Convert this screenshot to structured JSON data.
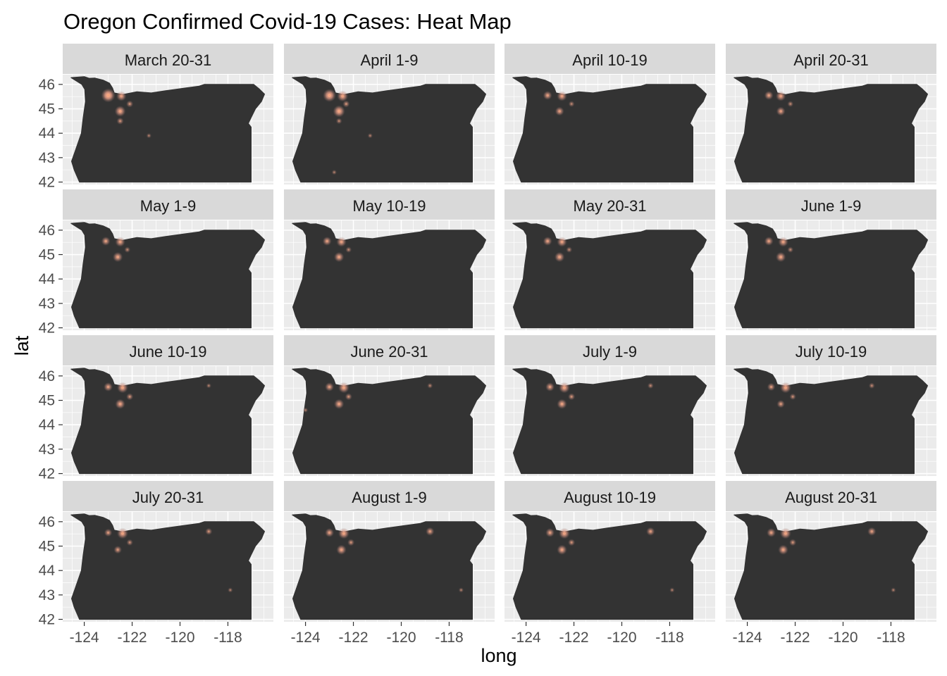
{
  "chart_data": {
    "type": "heatmap",
    "title": "Oregon Confirmed Covid-19 Cases: Heat Map",
    "xlabel": "long",
    "ylabel": "lat",
    "xlim": [
      -124.9,
      -116.1
    ],
    "ylim": [
      41.9,
      46.4
    ],
    "x_ticks": [
      -124,
      -122,
      -120,
      -118
    ],
    "y_ticks": [
      42,
      43,
      44,
      45,
      46
    ],
    "grid": true,
    "facet_layout": {
      "rows": 4,
      "cols": 4
    },
    "colors": {
      "panel_background": "#ebebeb",
      "grid": "#ffffff",
      "strip_background": "#d9d9d9",
      "map_fill": "#333333",
      "hotspot_core": "#f4a582",
      "hotspot_glow": "#c0857a"
    },
    "oregon_outline": [
      [
        -124.55,
        46.28
      ],
      [
        -124.0,
        46.32
      ],
      [
        -123.8,
        46.25
      ],
      [
        -123.55,
        46.26
      ],
      [
        -123.2,
        46.17
      ],
      [
        -122.95,
        46.05
      ],
      [
        -122.82,
        45.85
      ],
      [
        -122.75,
        45.65
      ],
      [
        -122.4,
        45.58
      ],
      [
        -121.8,
        45.7
      ],
      [
        -121.2,
        45.65
      ],
      [
        -120.6,
        45.74
      ],
      [
        -119.8,
        45.85
      ],
      [
        -119.2,
        45.93
      ],
      [
        -118.99,
        46.0
      ],
      [
        -116.92,
        46.0
      ],
      [
        -116.7,
        45.82
      ],
      [
        -116.47,
        45.6
      ],
      [
        -116.6,
        45.3
      ],
      [
        -116.85,
        45.0
      ],
      [
        -117.0,
        44.7
      ],
      [
        -117.15,
        44.4
      ],
      [
        -117.03,
        44.25
      ],
      [
        -117.03,
        42.0
      ],
      [
        -124.2,
        42.0
      ],
      [
        -124.42,
        42.5
      ],
      [
        -124.53,
        42.85
      ],
      [
        -124.35,
        43.35
      ],
      [
        -124.12,
        44.0
      ],
      [
        -124.05,
        44.6
      ],
      [
        -123.95,
        45.3
      ],
      [
        -123.98,
        45.8
      ],
      [
        -124.1,
        46.0
      ]
    ],
    "panels": [
      {
        "label": "March 20-31",
        "points": [
          {
            "long": -123.0,
            "lat": 45.55,
            "intensity": 1.0
          },
          {
            "long": -122.45,
            "lat": 45.52,
            "intensity": 0.6
          },
          {
            "long": -122.1,
            "lat": 45.2,
            "intensity": 0.3
          },
          {
            "long": -122.5,
            "lat": 44.9,
            "intensity": 0.7
          },
          {
            "long": -122.5,
            "lat": 44.5,
            "intensity": 0.3
          },
          {
            "long": -121.3,
            "lat": 43.9,
            "intensity": 0.1
          }
        ]
      },
      {
        "label": "April 1-9",
        "points": [
          {
            "long": -123.0,
            "lat": 45.55,
            "intensity": 0.9
          },
          {
            "long": -122.45,
            "lat": 45.52,
            "intensity": 0.7
          },
          {
            "long": -122.3,
            "lat": 45.2,
            "intensity": 0.3
          },
          {
            "long": -122.6,
            "lat": 44.9,
            "intensity": 0.8
          },
          {
            "long": -122.6,
            "lat": 44.5,
            "intensity": 0.2
          },
          {
            "long": -121.3,
            "lat": 43.9,
            "intensity": 0.1
          },
          {
            "long": -122.8,
            "lat": 42.4,
            "intensity": 0.1
          }
        ]
      },
      {
        "label": "April 10-19",
        "points": [
          {
            "long": -123.1,
            "lat": 45.55,
            "intensity": 0.5
          },
          {
            "long": -122.5,
            "lat": 45.52,
            "intensity": 0.6
          },
          {
            "long": -122.1,
            "lat": 45.2,
            "intensity": 0.2
          },
          {
            "long": -122.6,
            "lat": 44.9,
            "intensity": 0.5
          }
        ]
      },
      {
        "label": "April 20-31",
        "points": [
          {
            "long": -123.1,
            "lat": 45.55,
            "intensity": 0.5
          },
          {
            "long": -122.6,
            "lat": 45.52,
            "intensity": 0.6
          },
          {
            "long": -122.2,
            "lat": 45.2,
            "intensity": 0.2
          },
          {
            "long": -122.6,
            "lat": 44.9,
            "intensity": 0.5
          }
        ]
      },
      {
        "label": "May 1-9",
        "points": [
          {
            "long": -123.1,
            "lat": 45.55,
            "intensity": 0.5
          },
          {
            "long": -122.5,
            "lat": 45.52,
            "intensity": 0.6
          },
          {
            "long": -122.2,
            "lat": 45.2,
            "intensity": 0.2
          },
          {
            "long": -122.6,
            "lat": 44.9,
            "intensity": 0.6
          }
        ]
      },
      {
        "label": "May 10-19",
        "points": [
          {
            "long": -123.1,
            "lat": 45.55,
            "intensity": 0.5
          },
          {
            "long": -122.5,
            "lat": 45.52,
            "intensity": 0.6
          },
          {
            "long": -122.2,
            "lat": 45.2,
            "intensity": 0.2
          },
          {
            "long": -122.6,
            "lat": 44.9,
            "intensity": 0.6
          }
        ]
      },
      {
        "label": "May 20-31",
        "points": [
          {
            "long": -123.1,
            "lat": 45.55,
            "intensity": 0.5
          },
          {
            "long": -122.5,
            "lat": 45.52,
            "intensity": 0.6
          },
          {
            "long": -122.2,
            "lat": 45.2,
            "intensity": 0.2
          },
          {
            "long": -122.6,
            "lat": 44.9,
            "intensity": 0.6
          }
        ]
      },
      {
        "label": "June 1-9",
        "points": [
          {
            "long": -123.1,
            "lat": 45.55,
            "intensity": 0.5
          },
          {
            "long": -122.5,
            "lat": 45.52,
            "intensity": 0.6
          },
          {
            "long": -122.2,
            "lat": 45.2,
            "intensity": 0.2
          },
          {
            "long": -122.6,
            "lat": 44.9,
            "intensity": 0.6
          }
        ]
      },
      {
        "label": "June 10-19",
        "points": [
          {
            "long": -123.0,
            "lat": 45.55,
            "intensity": 0.5
          },
          {
            "long": -122.4,
            "lat": 45.52,
            "intensity": 0.7
          },
          {
            "long": -122.1,
            "lat": 45.15,
            "intensity": 0.3
          },
          {
            "long": -122.5,
            "lat": 44.85,
            "intensity": 0.6
          },
          {
            "long": -118.8,
            "lat": 45.6,
            "intensity": 0.1
          }
        ]
      },
      {
        "label": "June 20-31",
        "points": [
          {
            "long": -123.0,
            "lat": 45.55,
            "intensity": 0.5
          },
          {
            "long": -122.4,
            "lat": 45.52,
            "intensity": 0.7
          },
          {
            "long": -122.2,
            "lat": 45.15,
            "intensity": 0.3
          },
          {
            "long": -122.6,
            "lat": 44.85,
            "intensity": 0.6
          },
          {
            "long": -118.8,
            "lat": 45.6,
            "intensity": 0.15
          },
          {
            "long": -124.0,
            "lat": 44.6,
            "intensity": 0.1
          }
        ]
      },
      {
        "label": "July 1-9",
        "points": [
          {
            "long": -123.0,
            "lat": 45.55,
            "intensity": 0.5
          },
          {
            "long": -122.4,
            "lat": 45.52,
            "intensity": 0.7
          },
          {
            "long": -122.1,
            "lat": 45.15,
            "intensity": 0.3
          },
          {
            "long": -122.5,
            "lat": 44.85,
            "intensity": 0.6
          },
          {
            "long": -118.8,
            "lat": 45.6,
            "intensity": 0.2
          }
        ]
      },
      {
        "label": "July 10-19",
        "points": [
          {
            "long": -123.0,
            "lat": 45.55,
            "intensity": 0.4
          },
          {
            "long": -122.4,
            "lat": 45.52,
            "intensity": 0.7
          },
          {
            "long": -122.1,
            "lat": 45.15,
            "intensity": 0.25
          },
          {
            "long": -122.6,
            "lat": 44.85,
            "intensity": 0.4
          },
          {
            "long": -118.8,
            "lat": 45.6,
            "intensity": 0.2
          }
        ]
      },
      {
        "label": "July 20-31",
        "points": [
          {
            "long": -123.0,
            "lat": 45.55,
            "intensity": 0.4
          },
          {
            "long": -122.4,
            "lat": 45.52,
            "intensity": 0.7
          },
          {
            "long": -122.1,
            "lat": 45.15,
            "intensity": 0.25
          },
          {
            "long": -122.6,
            "lat": 44.85,
            "intensity": 0.4
          },
          {
            "long": -118.8,
            "lat": 45.6,
            "intensity": 0.3
          },
          {
            "long": -117.9,
            "lat": 43.2,
            "intensity": 0.1
          }
        ]
      },
      {
        "label": "August 1-9",
        "points": [
          {
            "long": -123.0,
            "lat": 45.55,
            "intensity": 0.5
          },
          {
            "long": -122.4,
            "lat": 45.52,
            "intensity": 0.7
          },
          {
            "long": -122.1,
            "lat": 45.15,
            "intensity": 0.3
          },
          {
            "long": -122.5,
            "lat": 44.85,
            "intensity": 0.6
          },
          {
            "long": -118.8,
            "lat": 45.6,
            "intensity": 0.45
          },
          {
            "long": -117.5,
            "lat": 43.2,
            "intensity": 0.1
          }
        ]
      },
      {
        "label": "August 10-19",
        "points": [
          {
            "long": -123.0,
            "lat": 45.55,
            "intensity": 0.5
          },
          {
            "long": -122.4,
            "lat": 45.52,
            "intensity": 0.7
          },
          {
            "long": -122.1,
            "lat": 45.15,
            "intensity": 0.3
          },
          {
            "long": -122.5,
            "lat": 44.85,
            "intensity": 0.6
          },
          {
            "long": -118.8,
            "lat": 45.6,
            "intensity": 0.45
          },
          {
            "long": -117.9,
            "lat": 43.2,
            "intensity": 0.1
          }
        ]
      },
      {
        "label": "August 20-31",
        "points": [
          {
            "long": -123.0,
            "lat": 45.55,
            "intensity": 0.5
          },
          {
            "long": -122.4,
            "lat": 45.52,
            "intensity": 0.7
          },
          {
            "long": -122.1,
            "lat": 45.15,
            "intensity": 0.3
          },
          {
            "long": -122.5,
            "lat": 44.85,
            "intensity": 0.6
          },
          {
            "long": -118.8,
            "lat": 45.6,
            "intensity": 0.45
          },
          {
            "long": -117.9,
            "lat": 43.2,
            "intensity": 0.1
          }
        ]
      }
    ]
  }
}
